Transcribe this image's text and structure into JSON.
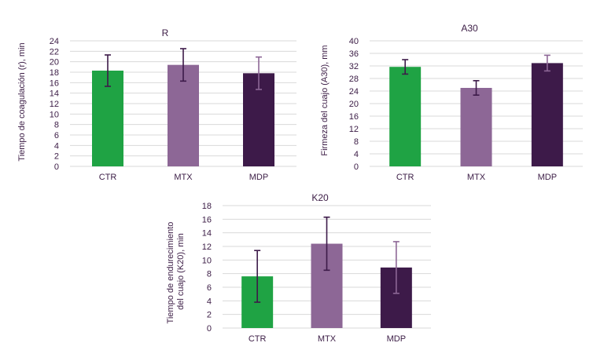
{
  "chart_data": [
    {
      "id": "r",
      "type": "bar",
      "title": "R",
      "ylabel": "Tiempo de coagulación (r), min",
      "xlabel": "",
      "categories": [
        "CTR",
        "MTX",
        "MDP"
      ],
      "values": [
        18.3,
        19.4,
        17.8
      ],
      "errors": [
        3.0,
        3.1,
        3.1
      ],
      "colors": [
        "#1fa344",
        "#8d6796",
        "#3d1a49"
      ],
      "ylim": [
        0,
        24
      ],
      "yticks": [
        0,
        2,
        4,
        6,
        8,
        10,
        12,
        14,
        16,
        18,
        20,
        22,
        24
      ],
      "grid": true
    },
    {
      "id": "a30",
      "type": "bar",
      "title": "A30",
      "ylabel": "Firmeza del cuajo (A30), mm",
      "xlabel": "",
      "categories": [
        "CTR",
        "MTX",
        "MDP"
      ],
      "values": [
        31.7,
        25.0,
        32.9
      ],
      "errors": [
        2.3,
        2.3,
        2.5
      ],
      "colors": [
        "#1fa344",
        "#8d6796",
        "#3d1a49"
      ],
      "ylim": [
        0,
        40
      ],
      "yticks": [
        0,
        4,
        8,
        12,
        16,
        20,
        24,
        28,
        32,
        36,
        40
      ],
      "grid": true
    },
    {
      "id": "k20",
      "type": "bar",
      "title": "K20",
      "ylabel": "Tiempo de endurecimiento del cuajo (K20), min",
      "ylabel_lines": [
        "Tiempo de endurecimiento",
        "del cuajo (K20), min"
      ],
      "xlabel": "",
      "categories": [
        "CTR",
        "MTX",
        "MDP"
      ],
      "values": [
        7.6,
        12.4,
        8.9
      ],
      "errors": [
        3.8,
        3.9,
        3.8
      ],
      "colors": [
        "#1fa344",
        "#8d6796",
        "#3d1a49"
      ],
      "ylim": [
        0,
        18
      ],
      "yticks": [
        0,
        2,
        4,
        6,
        8,
        10,
        12,
        14,
        16,
        18
      ],
      "grid": true
    }
  ]
}
